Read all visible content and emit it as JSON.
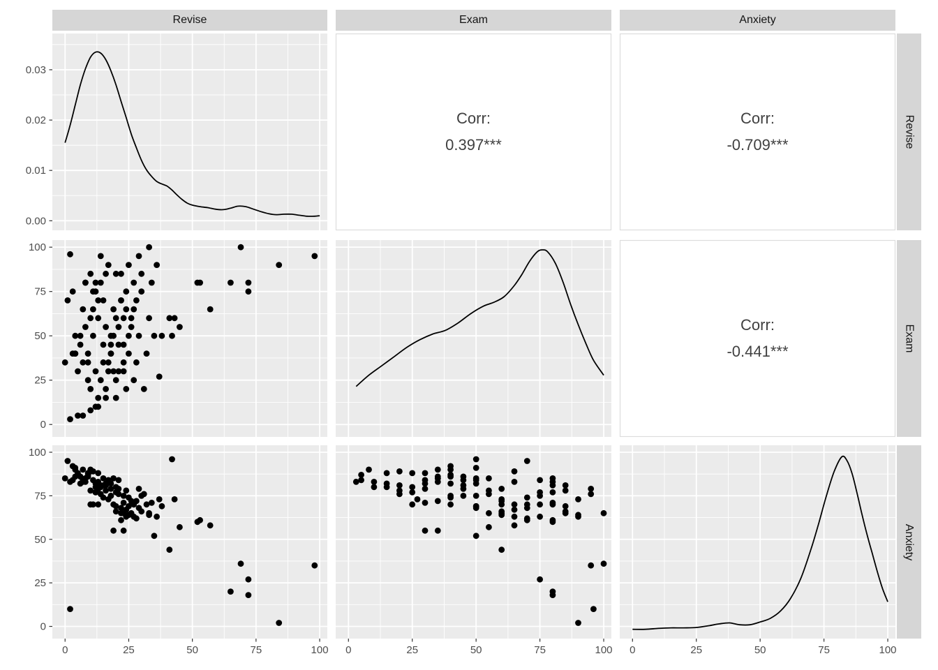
{
  "chart_data": {
    "type": "scatterplot-matrix",
    "library_style": "ggplot2-ggpairs",
    "variables": [
      "Revise",
      "Exam",
      "Anxiety"
    ],
    "panel_layout": {
      "diagonal": "density",
      "lower_triangle": "scatter",
      "upper_triangle": "correlation"
    },
    "correlations": [
      {
        "row_var": "Revise",
        "col_var": "Exam",
        "label": "Corr:",
        "value": "0.397***"
      },
      {
        "row_var": "Revise",
        "col_var": "Anxiety",
        "label": "Corr:",
        "value": "-0.709***"
      },
      {
        "row_var": "Exam",
        "col_var": "Anxiety",
        "label": "Corr:",
        "value": "-0.441***"
      }
    ],
    "axes": {
      "x_ticks": [
        0,
        25,
        50,
        75,
        100
      ],
      "x_tick_labels": [
        "0",
        "25",
        "50",
        "75",
        "100"
      ],
      "x_minor": [
        12.5,
        37.5,
        62.5,
        87.5
      ],
      "x_range": [
        -5,
        103
      ],
      "y_ticks_row1": [
        0,
        0.01,
        0.02,
        0.03
      ],
      "y_tick_labels_row1": [
        "0.00",
        "0.01",
        "0.02",
        "0.03"
      ],
      "y_minor_row1": [
        0.005,
        0.015,
        0.025,
        0.035
      ],
      "y_range_row1": [
        -0.0019,
        0.0372
      ],
      "y_ticks_rows23": [
        0,
        25,
        50,
        75,
        100
      ],
      "y_tick_labels_rows23": [
        "0",
        "25",
        "50",
        "75",
        "100"
      ],
      "y_minor_rows23": [
        12.5,
        37.5,
        62.5,
        87.5
      ],
      "y_range_rows23": [
        -7,
        104
      ],
      "grid": true
    },
    "densities": {
      "revise": {
        "y_units": "density",
        "x": [
          0,
          2,
          4,
          6,
          8,
          10,
          12,
          14,
          16,
          18,
          20,
          22,
          24,
          26,
          28,
          30,
          32,
          34,
          36,
          38,
          40,
          42,
          44,
          46,
          48,
          50,
          53,
          56,
          59,
          62,
          65,
          68,
          71,
          74,
          77,
          80,
          83,
          86,
          89,
          92,
          95,
          98,
          100
        ],
        "y": [
          0.0155,
          0.019,
          0.023,
          0.027,
          0.0302,
          0.0325,
          0.0335,
          0.0333,
          0.032,
          0.0298,
          0.027,
          0.0237,
          0.0205,
          0.0172,
          0.0145,
          0.012,
          0.0101,
          0.0088,
          0.0078,
          0.0073,
          0.0069,
          0.0061,
          0.0051,
          0.0042,
          0.0035,
          0.0031,
          0.0028,
          0.0026,
          0.0023,
          0.0022,
          0.0025,
          0.0029,
          0.0028,
          0.0023,
          0.0018,
          0.0014,
          0.0012,
          0.0013,
          0.0013,
          0.0011,
          0.0009,
          0.0009,
          0.001
        ]
      },
      "exam": {
        "y_units": "panel_fraction",
        "x": [
          3,
          8,
          13,
          18,
          23,
          28,
          33,
          38,
          43,
          48,
          53,
          57,
          61,
          65,
          68,
          71,
          74,
          76,
          78,
          81,
          84,
          87,
          90,
          93,
          96,
          100
        ],
        "y": [
          0.24,
          0.3,
          0.35,
          0.4,
          0.45,
          0.49,
          0.52,
          0.54,
          0.58,
          0.63,
          0.67,
          0.69,
          0.72,
          0.78,
          0.84,
          0.91,
          0.96,
          0.97,
          0.96,
          0.9,
          0.8,
          0.68,
          0.57,
          0.47,
          0.38,
          0.3
        ]
      },
      "anxiety": {
        "y_units": "panel_fraction",
        "x": [
          0,
          5,
          10,
          15,
          20,
          25,
          30,
          34,
          38,
          42,
          46,
          50,
          54,
          58,
          62,
          66,
          70,
          73,
          76,
          79,
          82,
          84,
          86,
          88,
          90,
          92,
          94,
          96,
          98,
          100
        ],
        "y": [
          0.02,
          0.02,
          0.025,
          0.028,
          0.028,
          0.03,
          0.04,
          0.05,
          0.055,
          0.045,
          0.045,
          0.06,
          0.08,
          0.12,
          0.19,
          0.3,
          0.46,
          0.6,
          0.75,
          0.88,
          0.96,
          0.94,
          0.87,
          0.76,
          0.64,
          0.53,
          0.43,
          0.33,
          0.24,
          0.17
        ]
      }
    },
    "points_columns": [
      "Revise",
      "Exam",
      "Anxiety"
    ],
    "points": [
      [
        4,
        40,
        86
      ],
      [
        11,
        65,
        89
      ],
      [
        27,
        80,
        70
      ],
      [
        53,
        80,
        61
      ],
      [
        4,
        40,
        90
      ],
      [
        22,
        70,
        61
      ],
      [
        16,
        20,
        81
      ],
      [
        21,
        55,
        76
      ],
      [
        25,
        50,
        69
      ],
      [
        18,
        40,
        82
      ],
      [
        18,
        45,
        79
      ],
      [
        16,
        85,
        81
      ],
      [
        13,
        70,
        70
      ],
      [
        18,
        50,
        75
      ],
      [
        98,
        95,
        35
      ],
      [
        1,
        70,
        95
      ],
      [
        14,
        95,
        76
      ],
      [
        29,
        95,
        79
      ],
      [
        4,
        50,
        91
      ],
      [
        23,
        60,
        65
      ],
      [
        14,
        80,
        81
      ],
      [
        12,
        75,
        77
      ],
      [
        22,
        85,
        65
      ],
      [
        84,
        90,
        2
      ],
      [
        23,
        30,
        71
      ],
      [
        26,
        60,
        72
      ],
      [
        24,
        75,
        63
      ],
      [
        72,
        75,
        27
      ],
      [
        37,
        27,
        73
      ],
      [
        10,
        20,
        89
      ],
      [
        3,
        75,
        84
      ],
      [
        36,
        90,
        63
      ],
      [
        43,
        60,
        73
      ],
      [
        19,
        30,
        55
      ],
      [
        12,
        80,
        77
      ],
      [
        9,
        35,
        86
      ],
      [
        72,
        80,
        18
      ],
      [
        10,
        60,
        70
      ],
      [
        12,
        10,
        80
      ],
      [
        30,
        75,
        75
      ],
      [
        15,
        35,
        85
      ],
      [
        8,
        80,
        85
      ],
      [
        34,
        80,
        71
      ],
      [
        22,
        70,
        68
      ],
      [
        21,
        45,
        84
      ],
      [
        27,
        25,
        70
      ],
      [
        6,
        50,
        82
      ],
      [
        18,
        40,
        75
      ],
      [
        8,
        80,
        83
      ],
      [
        19,
        50,
        85
      ],
      [
        0,
        35,
        85
      ],
      [
        52,
        80,
        60
      ],
      [
        38,
        50,
        69
      ],
      [
        19,
        65,
        70
      ],
      [
        23,
        35,
        55
      ],
      [
        11,
        75,
        70
      ],
      [
        27,
        65,
        63
      ],
      [
        17,
        30,
        84
      ],
      [
        13,
        10,
        83
      ],
      [
        42,
        50,
        96
      ],
      [
        2,
        96,
        10
      ],
      [
        5,
        5,
        87
      ],
      [
        2,
        3,
        83
      ],
      [
        7,
        5,
        84
      ],
      [
        10,
        8,
        90
      ],
      [
        13,
        15,
        88
      ],
      [
        20,
        15,
        80
      ],
      [
        16,
        15,
        82
      ],
      [
        24,
        20,
        78
      ],
      [
        31,
        20,
        76
      ],
      [
        9,
        25,
        88
      ],
      [
        14,
        25,
        80
      ],
      [
        20,
        25,
        77
      ],
      [
        5,
        30,
        88
      ],
      [
        12,
        30,
        82
      ],
      [
        21,
        30,
        79
      ],
      [
        7,
        35,
        90
      ],
      [
        17,
        35,
        83
      ],
      [
        28,
        35,
        72
      ],
      [
        3,
        40,
        92
      ],
      [
        9,
        40,
        87
      ],
      [
        25,
        40,
        74
      ],
      [
        32,
        40,
        70
      ],
      [
        6,
        45,
        86
      ],
      [
        15,
        45,
        81
      ],
      [
        23,
        45,
        75
      ],
      [
        11,
        50,
        84
      ],
      [
        29,
        50,
        68
      ],
      [
        35,
        50,
        52
      ],
      [
        8,
        55,
        85
      ],
      [
        16,
        55,
        78
      ],
      [
        26,
        55,
        65
      ],
      [
        13,
        60,
        79
      ],
      [
        20,
        60,
        66
      ],
      [
        33,
        60,
        64
      ],
      [
        7,
        65,
        83
      ],
      [
        24,
        65,
        67
      ],
      [
        15,
        70,
        74
      ],
      [
        28,
        70,
        62
      ],
      [
        10,
        85,
        78
      ],
      [
        20,
        85,
        69
      ],
      [
        30,
        85,
        66
      ],
      [
        17,
        90,
        73
      ],
      [
        25,
        90,
        64
      ],
      [
        45,
        55,
        57
      ],
      [
        41,
        60,
        44
      ],
      [
        57,
        65,
        58
      ],
      [
        65,
        80,
        20
      ],
      [
        69,
        100,
        36
      ],
      [
        33,
        100,
        65
      ]
    ],
    "style": {
      "panel_bg": "#EBEBEB",
      "grid_color": "#FFFFFF",
      "strip_bg": "#D6D6D6",
      "strip_text_color": "#141414",
      "axis_text_color": "#4D4D4D",
      "tick_mark_color": "#333333",
      "corr_text_color": "#404040",
      "corr_panel_border": "#DCDCDC",
      "point_color": "#000000",
      "line_color": "#000000"
    }
  }
}
